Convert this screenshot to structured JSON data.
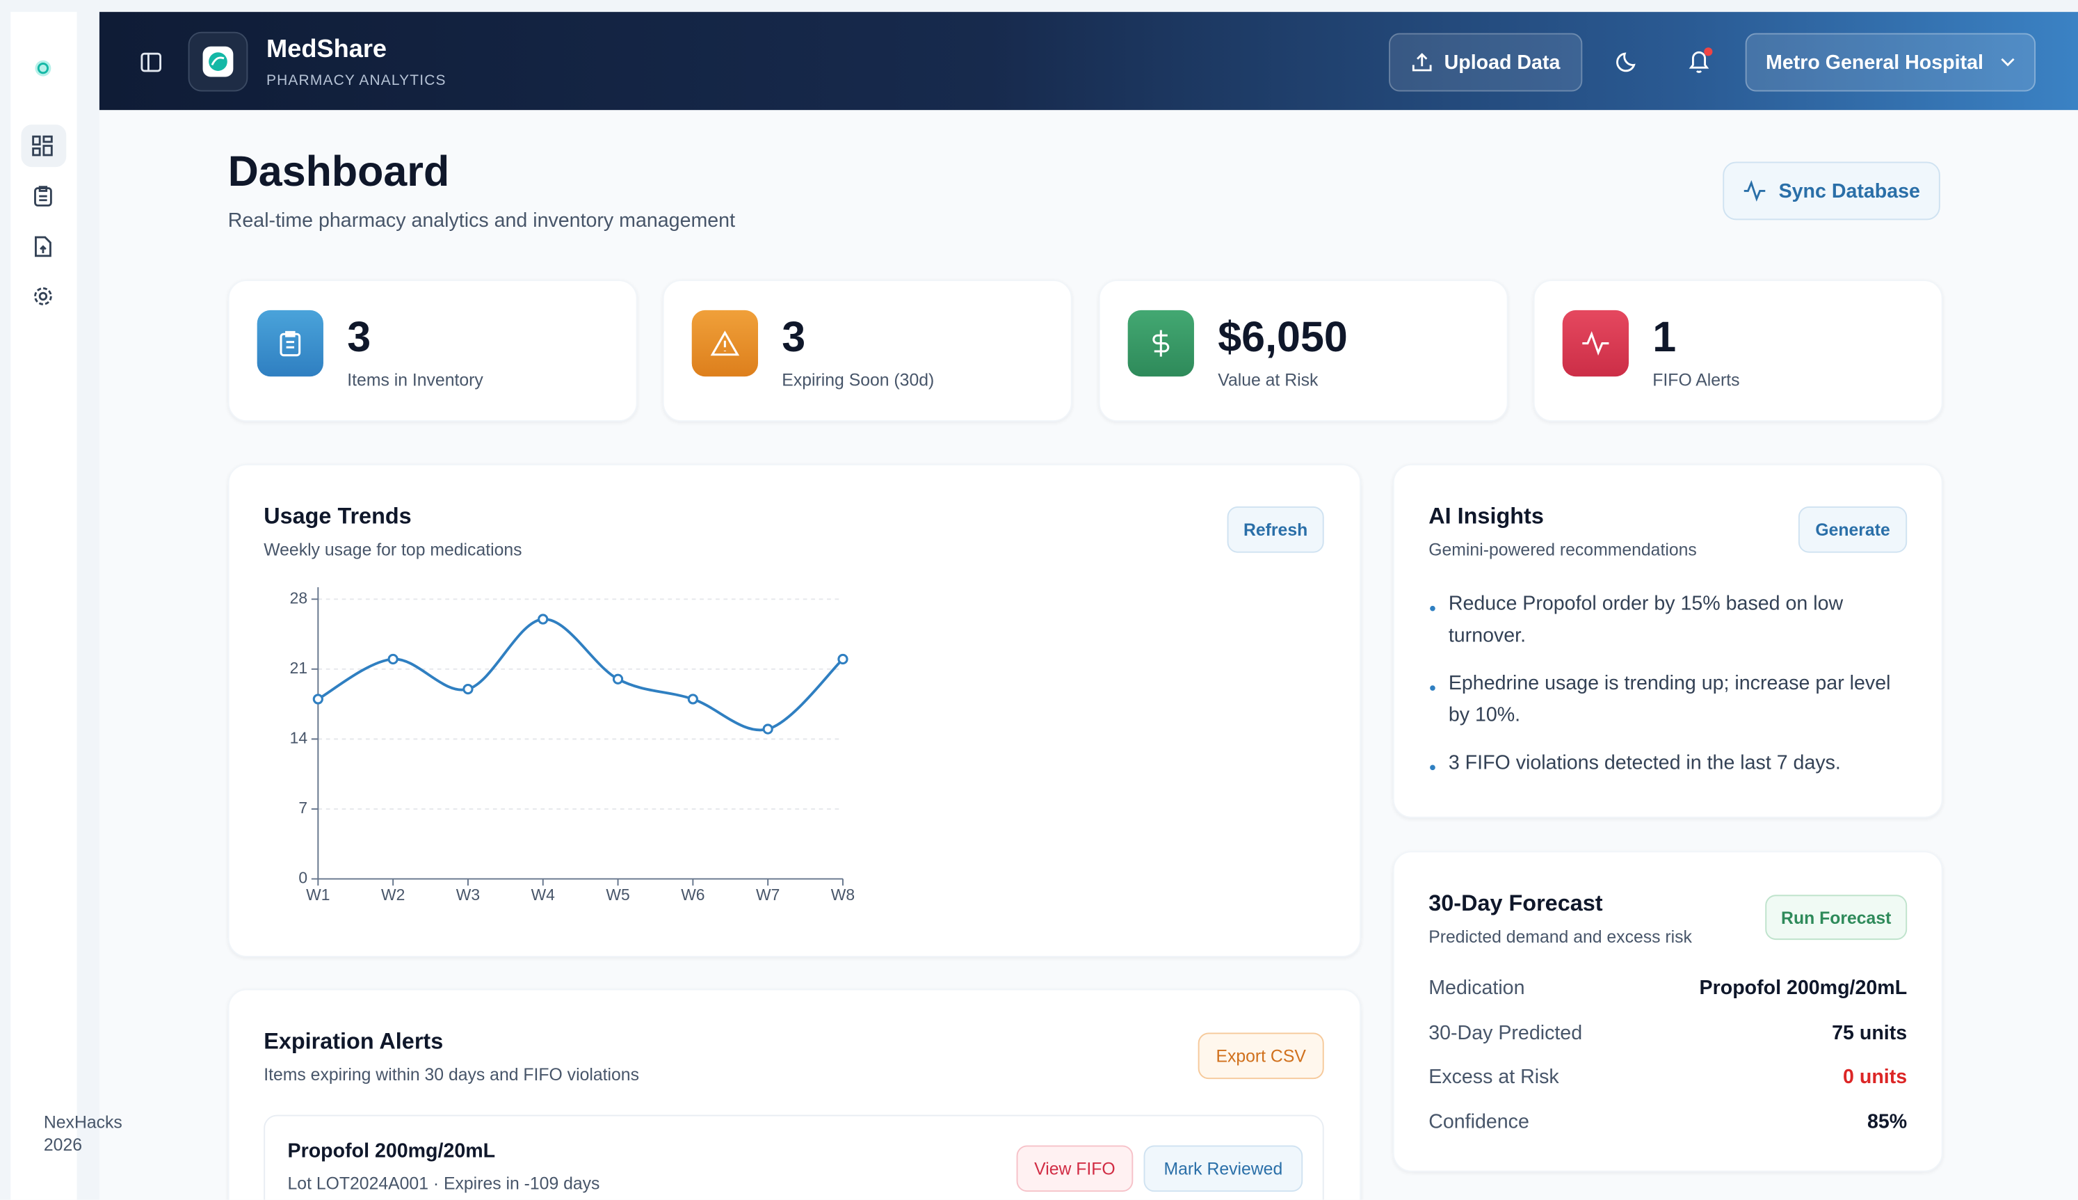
{
  "sidebar": {
    "footer": "NexHacks 2026"
  },
  "header": {
    "brand": "MedShare",
    "tagline": "PHARMACY ANALYTICS",
    "upload": "Upload Data",
    "hospital": "Metro General Hospital"
  },
  "page": {
    "title": "Dashboard",
    "subtitle": "Real-time pharmacy analytics and inventory management",
    "sync": "Sync Database"
  },
  "stats": [
    {
      "value": "3",
      "label": "Items in Inventory"
    },
    {
      "value": "3",
      "label": "Expiring Soon (30d)"
    },
    {
      "value": "$6,050",
      "label": "Value at Risk"
    },
    {
      "value": "1",
      "label": "FIFO Alerts"
    }
  ],
  "usage_trends": {
    "title": "Usage Trends",
    "subtitle": "Weekly usage for top medications",
    "button": "Refresh"
  },
  "chart_data": {
    "type": "line",
    "categories": [
      "W1",
      "W2",
      "W3",
      "W4",
      "W5",
      "W6",
      "W7",
      "W8"
    ],
    "values": [
      18,
      22,
      19,
      26,
      20,
      18,
      15,
      22
    ],
    "color": "#2f7fc1",
    "ylim": [
      0,
      28
    ],
    "yticks": [
      0,
      7,
      14,
      21,
      28
    ],
    "grid": true
  },
  "ai_insights": {
    "title": "AI Insights",
    "subtitle": "Gemini-powered recommendations",
    "button": "Generate",
    "items": [
      "Reduce Propofol order by 15% based on low turnover.",
      "Ephedrine usage is trending up; increase par level by 10%.",
      "3 FIFO violations detected in the last 7 days."
    ]
  },
  "forecast": {
    "title": "30-Day Forecast",
    "subtitle": "Predicted demand and excess risk",
    "button": "Run Forecast",
    "rows": [
      [
        "Medication",
        "Propofol 200mg/20mL"
      ],
      [
        "30-Day Predicted",
        "75 units"
      ],
      [
        "Excess at Risk",
        "0 units"
      ],
      [
        "Confidence",
        "85%"
      ]
    ]
  },
  "alerts": {
    "title": "Expiration Alerts",
    "subtitle": "Items expiring within 30 days and FIFO violations",
    "button": "Export CSV",
    "items": [
      {
        "name": "Propofol 200mg/20mL",
        "detail": "Lot LOT2024A001 · Expires in -109 days",
        "actions": [
          "View FIFO",
          "Mark Reviewed"
        ]
      }
    ]
  }
}
